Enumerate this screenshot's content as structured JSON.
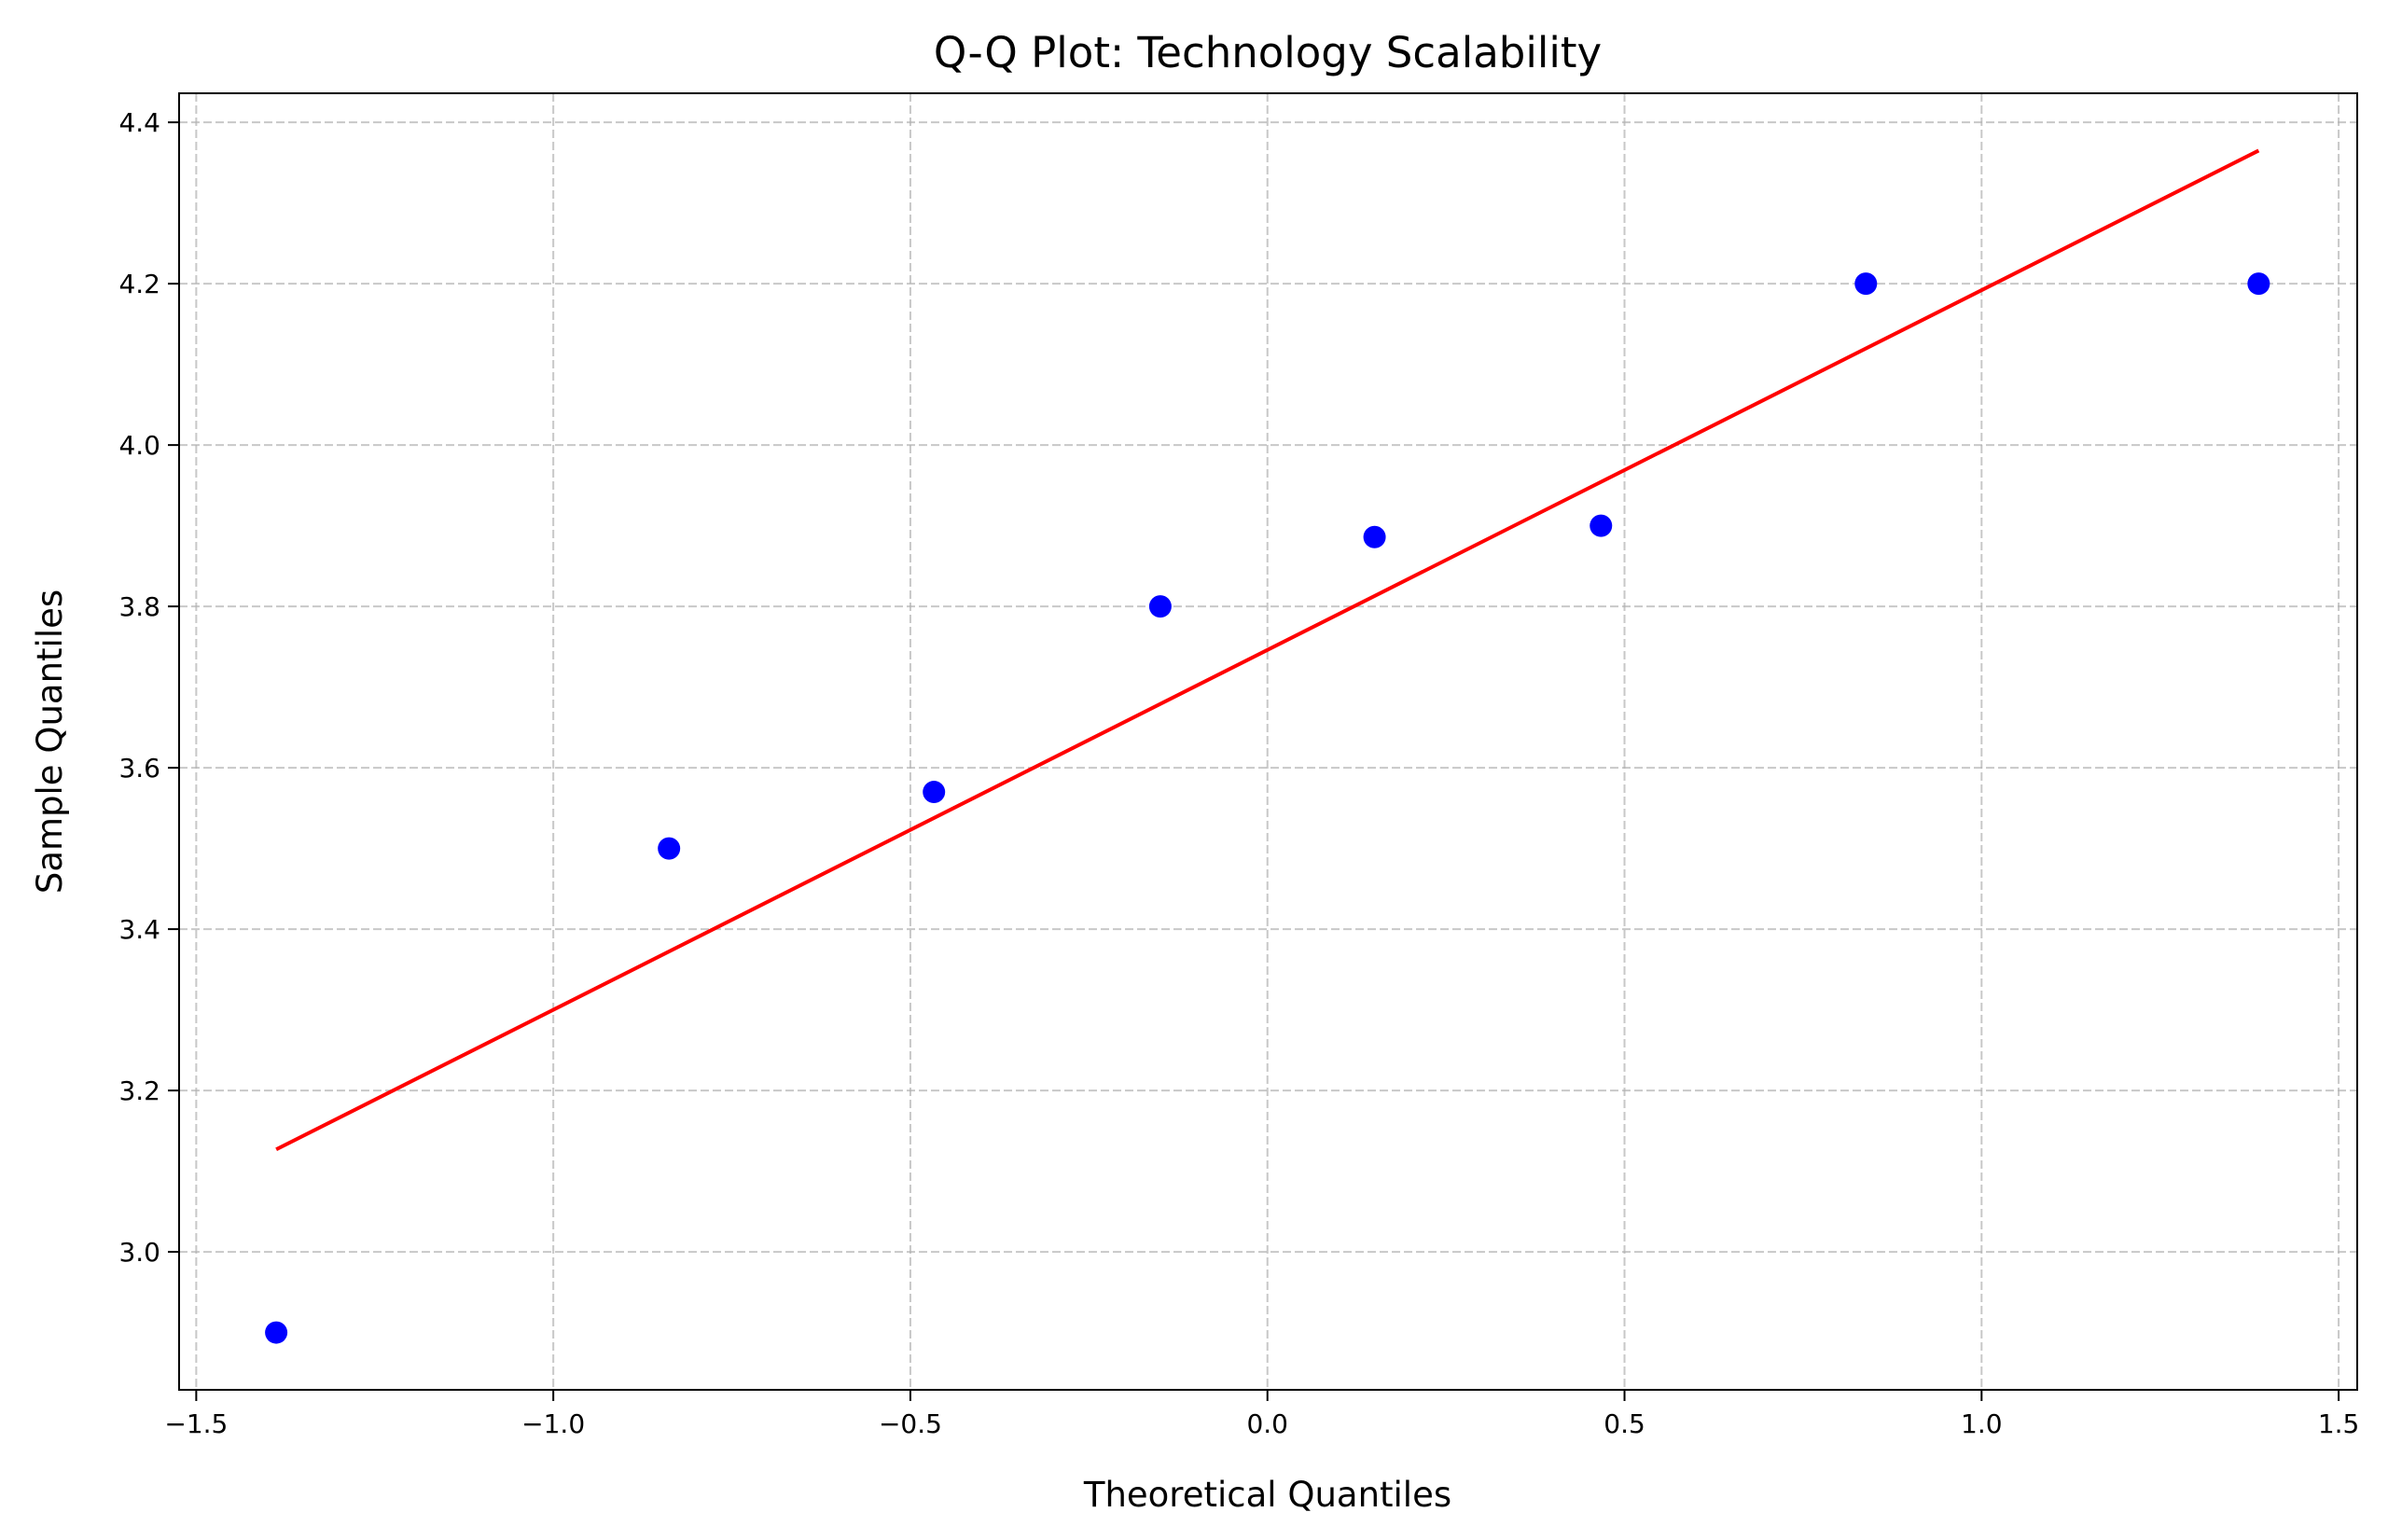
{
  "chart_data": {
    "type": "scatter",
    "title": "Q-Q Plot: Technology Scalability",
    "xlabel": "Theoretical Quantiles",
    "ylabel": "Sample Quantiles",
    "xlim": [
      -1.524,
      1.526
    ],
    "ylim": [
      2.829,
      4.436
    ],
    "xticks": [
      -1.5,
      -1.0,
      -0.5,
      0.0,
      0.5,
      1.0,
      1.5
    ],
    "xtick_labels": [
      "−1.5",
      "−1.0",
      "−0.5",
      "0.0",
      "0.5",
      "1.0",
      "1.5"
    ],
    "yticks": [
      3.0,
      3.2,
      3.4,
      3.6,
      3.8,
      4.0,
      4.2,
      4.4
    ],
    "ytick_labels": [
      "3.0",
      "3.2",
      "3.4",
      "3.6",
      "3.8",
      "4.0",
      "4.2",
      "4.4"
    ],
    "grid": true,
    "series": [
      {
        "type": "scatter",
        "color": "#0000ff",
        "x": [
          -1.388,
          -0.838,
          -0.467,
          -0.15,
          0.15,
          0.467,
          0.838,
          1.388
        ],
        "y": [
          2.9,
          3.5,
          3.57,
          3.8,
          3.886,
          3.9,
          4.2,
          4.2
        ]
      },
      {
        "type": "line",
        "color": "#ff0000",
        "x": [
          -1.388,
          1.388
        ],
        "y": [
          3.127,
          4.365
        ]
      }
    ]
  }
}
